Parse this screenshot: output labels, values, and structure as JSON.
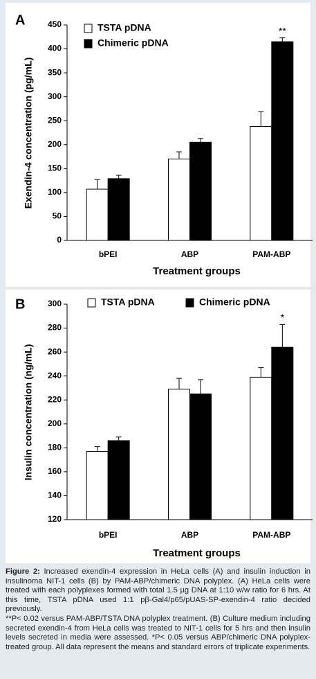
{
  "chart_data": [
    {
      "type": "bar",
      "panel_label": "A",
      "y_label": "Exendin-4 concentration (pg/mL)",
      "x_label": "Treatment groups",
      "categories": [
        "bPEI",
        "ABP",
        "PAM-ABP"
      ],
      "series": [
        {
          "name": "TSTA pDNA",
          "color": "#ffffff",
          "values": [
            107,
            170,
            238
          ],
          "errors": [
            20,
            15,
            31
          ]
        },
        {
          "name": "Chimeric pDNA",
          "color": "#000000",
          "values": [
            129,
            205,
            415
          ],
          "errors": [
            7,
            8,
            8
          ]
        }
      ],
      "ylim": [
        0,
        450
      ],
      "yticks": [
        0,
        50,
        100,
        150,
        200,
        250,
        300,
        350,
        400,
        450
      ],
      "annotation": "**"
    },
    {
      "type": "bar",
      "panel_label": "B",
      "y_label": "Insulin concentration (ng/mL)",
      "x_label": "Treatment groups",
      "categories": [
        "bPEI",
        "ABP",
        "PAM-ABP"
      ],
      "series": [
        {
          "name": "TSTA pDNA",
          "color": "#ffffff",
          "values": [
            177,
            229,
            239
          ],
          "errors": [
            4,
            9,
            8
          ]
        },
        {
          "name": "Chimeric pDNA",
          "color": "#000000",
          "values": [
            186,
            225,
            264
          ],
          "errors": [
            3,
            12,
            19
          ]
        }
      ],
      "ylim": [
        120,
        300
      ],
      "yticks": [
        120,
        140,
        160,
        180,
        200,
        220,
        240,
        260,
        280,
        300
      ],
      "annotation": "*"
    }
  ],
  "caption": {
    "label": "Figure 2:",
    "text": "Increased exendin-4 expression in HeLa cells (A) and insulin induction in insulinoma NIT-1 cells (B) by PAM-ABP/chimeric DNA polyplex. (A) HeLa cells were treated with each polyplexes formed with total 1.5 µg DNA at 1:10 w/w ratio for 6 hrs. At this time, TSTA pDNA used 1:1 pβ-Gal4/p65/pUAS-SP-exendin-4 ratio decided previously.",
    "text2": "**P< 0.02 versus PAM-ABP/TSTA DNA polyplex treatment. (B) Culture medium including secreted exendin-4 from HeLa cells was treated to NIT-1 cells for 5 hrs and then insulin levels secreted in media were assessed. *P< 0.05 versus ABP/chimeric DNA polyplex-treated group. All data represent the means and standard errors of triplicate experiments."
  }
}
